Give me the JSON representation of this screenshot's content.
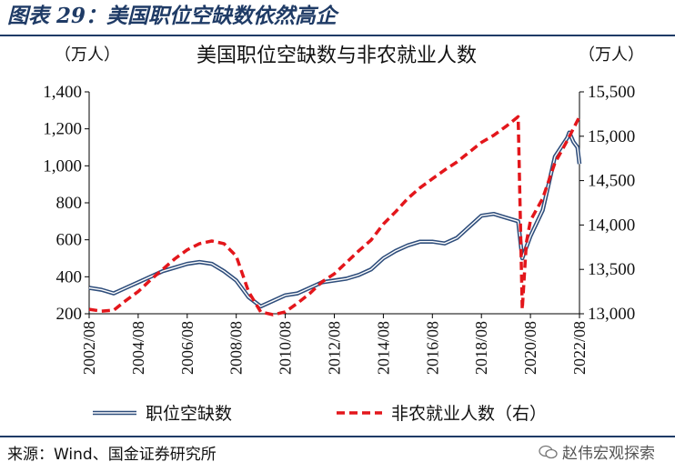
{
  "figure": {
    "title": "图表 29：美国职位空缺数依然高企",
    "source": "来源：Wind、国金证券研究所",
    "watermark": "赵伟宏观探索"
  },
  "colors": {
    "openings": "#2e4d7b",
    "payrolls": "#e3161b",
    "accent": "#1f3b66"
  },
  "chart_data": {
    "type": "line",
    "title": "美国职位空缺数与非农就业人数",
    "left_unit": "（万人）",
    "right_unit": "（万人）",
    "x_ticks": [
      "2002/08",
      "2004/08",
      "2006/08",
      "2008/08",
      "2010/08",
      "2012/08",
      "2014/08",
      "2016/08",
      "2018/08",
      "2020/08",
      "2022/08"
    ],
    "x_range": [
      "2002-08",
      "2022-08"
    ],
    "y_left": {
      "min": 200,
      "max": 1400,
      "ticks": [
        "200",
        "400",
        "600",
        "800",
        "1,000",
        "1,200",
        "1,400"
      ]
    },
    "y_right": {
      "min": 13000,
      "max": 15500,
      "ticks": [
        "13,000",
        "13,500",
        "14,000",
        "14,500",
        "15,000",
        "15,500"
      ]
    },
    "legend_position": "bottom",
    "series": [
      {
        "name": "职位空缺数",
        "axis": "left",
        "style": "double-line",
        "points": [
          [
            "2002-08",
            340
          ],
          [
            "2003-02",
            330
          ],
          [
            "2003-08",
            310
          ],
          [
            "2004-02",
            340
          ],
          [
            "2004-08",
            370
          ],
          [
            "2005-02",
            400
          ],
          [
            "2005-08",
            430
          ],
          [
            "2006-02",
            450
          ],
          [
            "2006-08",
            470
          ],
          [
            "2007-02",
            480
          ],
          [
            "2007-08",
            470
          ],
          [
            "2008-02",
            430
          ],
          [
            "2008-08",
            380
          ],
          [
            "2009-02",
            290
          ],
          [
            "2009-08",
            240
          ],
          [
            "2010-02",
            270
          ],
          [
            "2010-08",
            300
          ],
          [
            "2011-02",
            310
          ],
          [
            "2011-08",
            340
          ],
          [
            "2012-02",
            370
          ],
          [
            "2012-08",
            380
          ],
          [
            "2013-02",
            390
          ],
          [
            "2013-08",
            410
          ],
          [
            "2014-02",
            440
          ],
          [
            "2014-08",
            500
          ],
          [
            "2015-02",
            540
          ],
          [
            "2015-08",
            570
          ],
          [
            "2016-02",
            590
          ],
          [
            "2016-08",
            590
          ],
          [
            "2017-02",
            580
          ],
          [
            "2017-08",
            610
          ],
          [
            "2018-02",
            670
          ],
          [
            "2018-08",
            730
          ],
          [
            "2019-02",
            740
          ],
          [
            "2019-08",
            720
          ],
          [
            "2020-02",
            700
          ],
          [
            "2020-04",
            500
          ],
          [
            "2020-08",
            620
          ],
          [
            "2021-02",
            760
          ],
          [
            "2021-08",
            1050
          ],
          [
            "2022-02",
            1150
          ],
          [
            "2022-03",
            1180
          ],
          [
            "2022-05",
            1130
          ],
          [
            "2022-07",
            1100
          ],
          [
            "2022-08",
            1010
          ]
        ]
      },
      {
        "name": "非农就业人数（右）",
        "axis": "right",
        "style": "dashed",
        "points": [
          [
            "2002-08",
            13050
          ],
          [
            "2003-02",
            13030
          ],
          [
            "2003-08",
            13040
          ],
          [
            "2004-02",
            13150
          ],
          [
            "2004-08",
            13250
          ],
          [
            "2005-02",
            13380
          ],
          [
            "2005-08",
            13500
          ],
          [
            "2006-02",
            13620
          ],
          [
            "2006-08",
            13720
          ],
          [
            "2007-02",
            13790
          ],
          [
            "2007-08",
            13820
          ],
          [
            "2008-02",
            13790
          ],
          [
            "2008-08",
            13650
          ],
          [
            "2009-02",
            13250
          ],
          [
            "2009-08",
            13020
          ],
          [
            "2010-02",
            12990
          ],
          [
            "2010-08",
            13020
          ],
          [
            "2011-02",
            13120
          ],
          [
            "2011-08",
            13230
          ],
          [
            "2012-02",
            13360
          ],
          [
            "2012-08",
            13450
          ],
          [
            "2013-02",
            13580
          ],
          [
            "2013-08",
            13710
          ],
          [
            "2014-02",
            13830
          ],
          [
            "2014-08",
            14010
          ],
          [
            "2015-02",
            14150
          ],
          [
            "2015-08",
            14300
          ],
          [
            "2016-02",
            14420
          ],
          [
            "2016-08",
            14520
          ],
          [
            "2017-02",
            14620
          ],
          [
            "2017-08",
            14710
          ],
          [
            "2018-02",
            14820
          ],
          [
            "2018-08",
            14930
          ],
          [
            "2019-02",
            15010
          ],
          [
            "2019-08",
            15110
          ],
          [
            "2020-02",
            15220
          ],
          [
            "2020-04",
            13050
          ],
          [
            "2020-06",
            13800
          ],
          [
            "2020-08",
            14050
          ],
          [
            "2021-02",
            14300
          ],
          [
            "2021-08",
            14700
          ],
          [
            "2022-02",
            14950
          ],
          [
            "2022-08",
            15220
          ]
        ]
      }
    ]
  }
}
